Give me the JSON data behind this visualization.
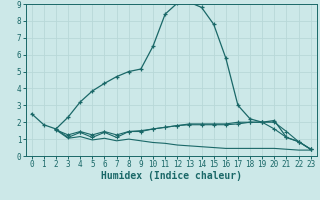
{
  "xlabel": "Humidex (Indice chaleur)",
  "bg_color": "#cce8e8",
  "grid_color": "#b8d8d8",
  "line_color": "#1a6868",
  "xlim": [
    -0.5,
    23.5
  ],
  "ylim": [
    0,
    9
  ],
  "xticks": [
    0,
    1,
    2,
    3,
    4,
    5,
    6,
    7,
    8,
    9,
    10,
    11,
    12,
    13,
    14,
    15,
    16,
    17,
    18,
    19,
    20,
    21,
    22,
    23
  ],
  "yticks": [
    0,
    1,
    2,
    3,
    4,
    5,
    6,
    7,
    8,
    9
  ],
  "main_x": [
    0,
    1,
    2,
    3,
    4,
    5,
    6,
    7,
    8,
    9,
    10,
    11,
    12,
    13,
    14,
    15,
    16,
    17,
    18,
    19,
    20,
    21,
    22,
    23
  ],
  "main_y": [
    2.5,
    1.85,
    1.6,
    2.3,
    3.2,
    3.85,
    4.3,
    4.7,
    5.0,
    5.15,
    6.5,
    8.4,
    9.05,
    9.1,
    8.8,
    7.8,
    5.8,
    3.0,
    2.2,
    2.0,
    2.1,
    1.1,
    0.85,
    0.4
  ],
  "line2_x": [
    2,
    3,
    4,
    5,
    6,
    7,
    8,
    9,
    10,
    11,
    12,
    13,
    14,
    15,
    16,
    17,
    18,
    19,
    20,
    21,
    22,
    23
  ],
  "line2_y": [
    1.6,
    1.1,
    1.4,
    1.1,
    1.4,
    1.1,
    1.45,
    1.5,
    1.6,
    1.7,
    1.8,
    1.9,
    1.9,
    1.9,
    1.9,
    2.0,
    2.0,
    2.0,
    1.6,
    1.1,
    0.85,
    0.4
  ],
  "line3_x": [
    2,
    3,
    4,
    5,
    6,
    7,
    8,
    9,
    10,
    11,
    12,
    13,
    14,
    15,
    16,
    17,
    18,
    19,
    20,
    21,
    22,
    23
  ],
  "line3_y": [
    1.55,
    1.25,
    1.45,
    1.25,
    1.45,
    1.25,
    1.45,
    1.45,
    1.6,
    1.7,
    1.8,
    1.85,
    1.85,
    1.85,
    1.85,
    1.9,
    2.0,
    2.0,
    2.0,
    1.45,
    0.85,
    0.4
  ],
  "line4_x": [
    2,
    3,
    4,
    5,
    6,
    7,
    8,
    9,
    10,
    11,
    12,
    13,
    14,
    15,
    16,
    17,
    18,
    19,
    20,
    21,
    22,
    23
  ],
  "line4_y": [
    1.55,
    1.05,
    1.15,
    0.95,
    1.05,
    0.9,
    1.0,
    0.9,
    0.8,
    0.75,
    0.65,
    0.6,
    0.55,
    0.5,
    0.45,
    0.45,
    0.45,
    0.45,
    0.45,
    0.4,
    0.35,
    0.35
  ],
  "tick_fontsize": 5.5,
  "label_fontsize": 7
}
